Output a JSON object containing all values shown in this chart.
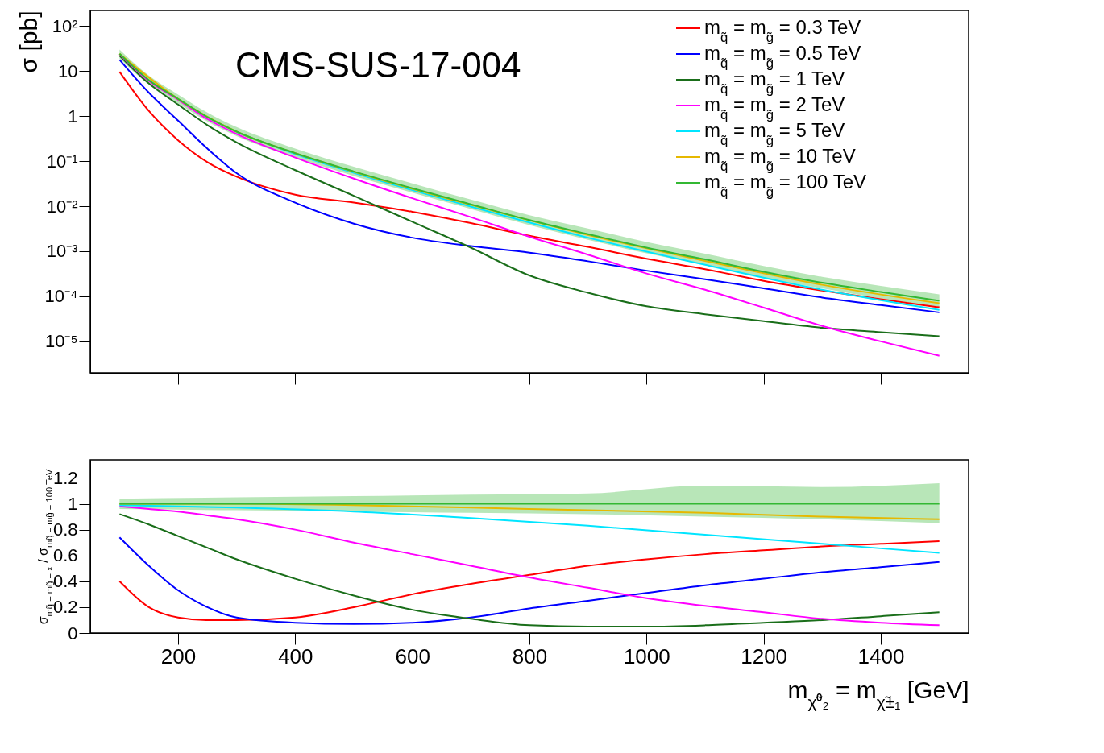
{
  "chart_data": [
    {
      "type": "line",
      "ylabel": "σ [pb]",
      "log": "y",
      "xlim": [
        50,
        1550
      ],
      "xticks": [
        200,
        400,
        600,
        800,
        1000,
        1200,
        1400
      ],
      "ylim": [
        2e-06,
        220
      ],
      "yticks": [
        {
          "value": 100,
          "label": "10²"
        },
        10,
        1,
        {
          "value": 0.1,
          "label": "10⁻¹"
        },
        {
          "value": 0.01,
          "label": "10⁻²"
        },
        {
          "value": 0.001,
          "label": "10⁻³"
        },
        {
          "value": 0.0001,
          "label": "10⁻⁴"
        },
        {
          "value": 1e-05,
          "label": "10⁻⁵"
        }
      ],
      "tick_labels": "y",
      "legend": "top right",
      "grid": false,
      "annotations": [
        "CMS-SUS-17-004"
      ],
      "x": [
        100,
        150,
        200,
        250,
        300,
        400,
        500,
        600,
        700,
        800,
        900,
        1000,
        1100,
        1200,
        1300,
        1400,
        1500
      ],
      "series": [
        {
          "name": "m$_{q̃}$ = m$_{g̃}$ = 0.3 TeV",
          "color": "#ff0000",
          "values": [
            9.6,
            1.3,
            0.29,
            0.095,
            0.045,
            0.018,
            0.012,
            0.0075,
            0.0042,
            0.0022,
            0.00125,
            0.00068,
            0.0004,
            0.00022,
            0.000134,
            8.6e-05,
            5.7e-05
          ]
        },
        {
          "name": "m$_{q̃}$ = m$_{g̃}$ = 0.5 TeV",
          "color": "#0000ff",
          "values": [
            17.8,
            3.3,
            0.79,
            0.19,
            0.054,
            0.012,
            0.0041,
            0.002,
            0.0013,
            0.00093,
            0.0006,
            0.00037,
            0.00024,
            0.00015,
            9.4e-05,
            6.4e-05,
            4.4e-05
          ]
        },
        {
          "name": "m$_{q̃}$ = m$_{g̃}$ = 1 TeV",
          "color": "#1a6e1a",
          "values": [
            22,
            5.3,
            1.8,
            0.63,
            0.26,
            0.063,
            0.017,
            0.0045,
            0.0012,
            0.00029,
            0.00012,
            6e-05,
            4e-05,
            2.8e-05,
            2e-05,
            1.6e-05,
            1.3e-05
          ]
        },
        {
          "name": "m$_{q̃}$ = m$_{g̃}$ = 2 TeV",
          "color": "#ff00ff",
          "values": [
            23.5,
            6.0,
            2.3,
            0.86,
            0.4,
            0.12,
            0.041,
            0.015,
            0.0057,
            0.0021,
            0.00084,
            0.00032,
            0.00014,
            5.6e-05,
            2.2e-05,
            1e-05,
            4.8e-06
          ]
        },
        {
          "name": "m$_{q̃}$ = m$_{g̃}$ = 5 TeV",
          "color": "#00e5ff",
          "x": [
            300,
            400,
            500,
            700,
            900,
            1100,
            1300,
            1500
          ],
          "values": [
            0.44,
            0.144,
            0.055,
            0.0098,
            0.002,
            0.0005,
            0.00014,
            5e-05
          ]
        },
        {
          "name": "m$_{q̃}$ = m$_{g̃}$ = 10 TeV",
          "color": "#e6b800",
          "x": [
            100,
            200,
            300,
            400,
            500,
            700,
            900,
            1100,
            1300,
            1500
          ],
          "values": [
            24,
            2.4,
            0.45,
            0.15,
            0.058,
            0.0107,
            0.0023,
            0.00061,
            0.00018,
            7e-05
          ]
        },
        {
          "name": "m$_{q̃}$ = m$_{g̃}$ = 100 TeV",
          "color": "#33b833",
          "values": [
            24,
            6.3,
            2.4,
            0.95,
            0.45,
            0.15,
            0.059,
            0.025,
            0.011,
            0.0049,
            0.0024,
            0.0012,
            0.00066,
            0.00035,
            0.0002,
            0.000125,
            8e-05
          ],
          "lower": [
            19,
            5.0,
            1.9,
            0.76,
            0.36,
            0.12,
            0.047,
            0.02,
            0.0087,
            0.0038,
            0.0018,
            0.0009,
            0.00049,
            0.00026,
            0.00015,
            9e-05,
            5.8e-05
          ],
          "upper": [
            30,
            7.9,
            3.0,
            1.2,
            0.57,
            0.19,
            0.075,
            0.032,
            0.014,
            0.0063,
            0.0032,
            0.0016,
            0.00088,
            0.00047,
            0.00027,
            0.00017,
            0.00011
          ]
        }
      ]
    },
    {
      "type": "line",
      "xlabel": "m$_{χ̃⁰₂}$ = m$_{χ̃±₁}$ [GeV]",
      "ylabel": "σ$_{mq̃ = mg̃ = x}$ / σ$_{mq̃ = mg̃ = 100 TeV}$",
      "xlim": [
        50,
        1550
      ],
      "xticks": [
        200,
        400,
        600,
        800,
        1000,
        1200,
        1400
      ],
      "ylim": [
        0,
        1.34
      ],
      "yticks": [
        0,
        0.2,
        0.4,
        0.6,
        0.8,
        1,
        1.2
      ],
      "grid": false,
      "x": [
        100,
        150,
        200,
        250,
        300,
        400,
        500,
        600,
        700,
        800,
        900,
        1000,
        1100,
        1200,
        1300,
        1400,
        1500
      ],
      "series": [
        {
          "color": "#ff0000",
          "values": [
            0.4,
            0.2,
            0.12,
            0.1,
            0.1,
            0.12,
            0.2,
            0.3,
            0.38,
            0.45,
            0.52,
            0.57,
            0.61,
            0.64,
            0.67,
            0.69,
            0.71
          ]
        },
        {
          "color": "#0000ff",
          "values": [
            0.74,
            0.52,
            0.33,
            0.2,
            0.12,
            0.08,
            0.07,
            0.08,
            0.12,
            0.19,
            0.25,
            0.31,
            0.37,
            0.42,
            0.47,
            0.51,
            0.55
          ]
        },
        {
          "color": "#1a6e1a",
          "values": [
            0.92,
            0.84,
            0.75,
            0.66,
            0.57,
            0.42,
            0.29,
            0.18,
            0.11,
            0.06,
            0.05,
            0.05,
            0.06,
            0.08,
            0.1,
            0.13,
            0.16
          ]
        },
        {
          "color": "#ff00ff",
          "values": [
            0.98,
            0.96,
            0.94,
            0.91,
            0.88,
            0.8,
            0.7,
            0.61,
            0.52,
            0.43,
            0.35,
            0.27,
            0.21,
            0.16,
            0.11,
            0.08,
            0.06
          ]
        },
        {
          "color": "#00e5ff",
          "x": [
            100,
            300,
            500,
            700,
            900,
            1100,
            1300,
            1500
          ],
          "values": [
            0.99,
            0.97,
            0.94,
            0.89,
            0.83,
            0.76,
            0.69,
            0.62
          ]
        },
        {
          "color": "#e6b800",
          "x": [
            100,
            300,
            500,
            700,
            900,
            1100,
            1300,
            1500
          ],
          "values": [
            1.0,
            1.0,
            0.99,
            0.97,
            0.95,
            0.93,
            0.9,
            0.88
          ]
        },
        {
          "color": "#33b833",
          "x": [
            100,
            300,
            500,
            700,
            900,
            1100,
            1300,
            1500
          ],
          "values": [
            1,
            1,
            1,
            1,
            1,
            1,
            1,
            1
          ],
          "lower": [
            0.96,
            0.95,
            0.94,
            0.93,
            0.92,
            0.9,
            0.88,
            0.85
          ],
          "upper": [
            1.04,
            1.05,
            1.06,
            1.07,
            1.08,
            1.14,
            1.13,
            1.16
          ]
        }
      ]
    }
  ]
}
